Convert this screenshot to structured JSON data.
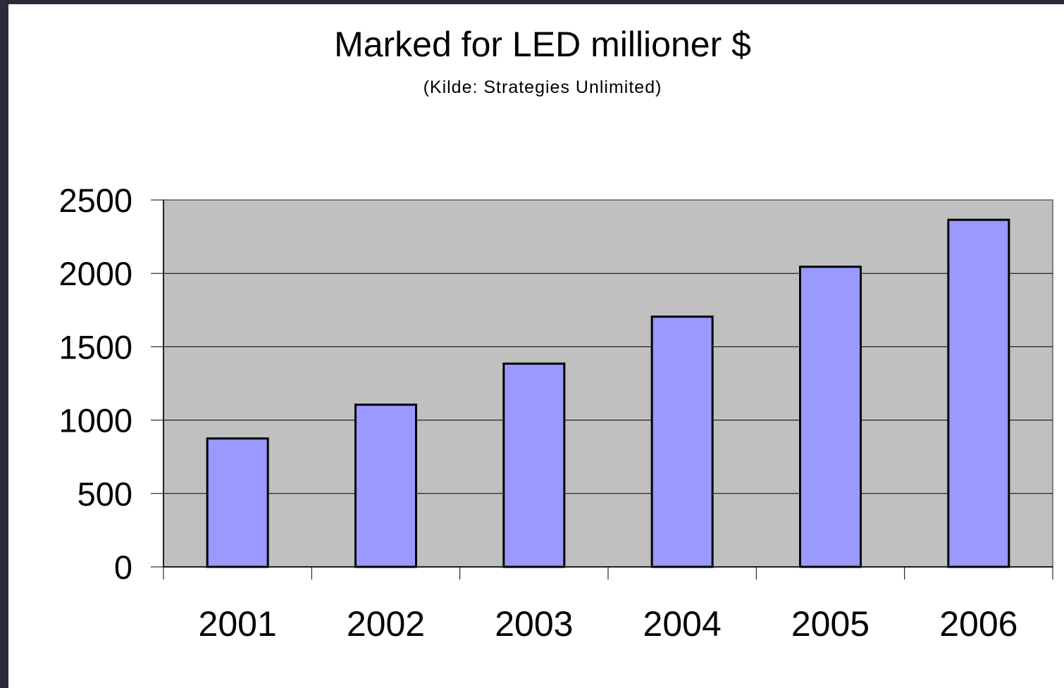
{
  "colors": {
    "plot_background": "#c0c0c0",
    "bar_fill": "#9999ff",
    "bar_stroke": "#000000",
    "page_border": "#2b2b3a"
  },
  "chart_data": {
    "type": "bar",
    "title": "Marked for LED millioner $",
    "subtitle": "(Kilde: Strategies Unlimited)",
    "xlabel": "",
    "ylabel": "",
    "categories": [
      "2001",
      "2002",
      "2003",
      "2004",
      "2005",
      "2006"
    ],
    "values": [
      875,
      1105,
      1385,
      1705,
      2045,
      2365
    ],
    "ylim": [
      0,
      2500
    ],
    "yticks": [
      0,
      500,
      1000,
      1500,
      2000,
      2500
    ],
    "grid": true,
    "legend": "none"
  }
}
